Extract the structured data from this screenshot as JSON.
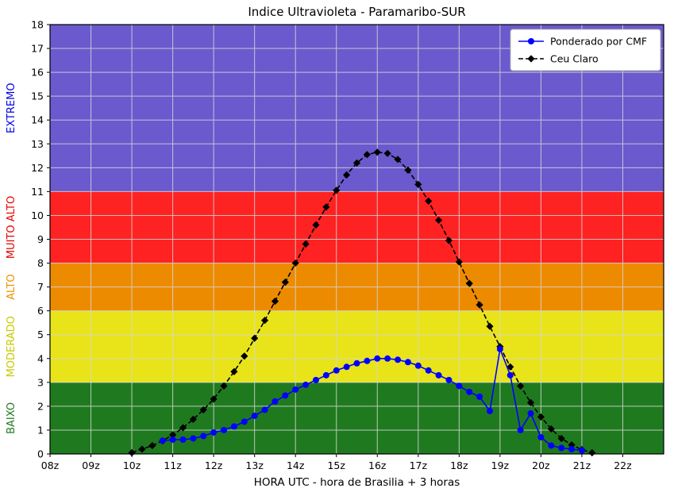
{
  "title": "Indice Ultravioleta - Paramaribo-SUR",
  "xlabel": "HORA UTC - hora de Brasilia + 3 horas",
  "chart_data": {
    "type": "line",
    "title": "Indice Ultravioleta - Paramaribo-SUR",
    "xlabel": "HORA UTC - hora de Brasilia + 3 horas",
    "ylabel": "",
    "xlim": [
      8,
      23
    ],
    "ylim": [
      0,
      18
    ],
    "grid": true,
    "legend_position": "top-right",
    "x_ticks": [
      8,
      9,
      10,
      11,
      12,
      13,
      14,
      15,
      16,
      17,
      18,
      19,
      20,
      21,
      22
    ],
    "x_tick_labels": [
      "08z",
      "09z",
      "10z",
      "11z",
      "12z",
      "13z",
      "14z",
      "15z",
      "16z",
      "17z",
      "18z",
      "19z",
      "20z",
      "21z",
      "22z"
    ],
    "y_ticks": [
      0,
      1,
      2,
      3,
      4,
      5,
      6,
      7,
      8,
      9,
      10,
      11,
      12,
      13,
      14,
      15,
      16,
      17,
      18
    ],
    "bands": [
      {
        "label": "BAIXO",
        "from": 0,
        "to": 3,
        "color": "#1f7a1f",
        "label_color": "#1f7a1f"
      },
      {
        "label": "MODERADO",
        "from": 3,
        "to": 6,
        "color": "#e8e419",
        "label_color": "#c9c900"
      },
      {
        "label": "ALTO",
        "from": 6,
        "to": 8,
        "color": "#ec8b00",
        "label_color": "#f09000"
      },
      {
        "label": "MUITO ALTO",
        "from": 8,
        "to": 11,
        "color": "#ff2222",
        "label_color": "#e80000"
      },
      {
        "label": "EXTREMO",
        "from": 11,
        "to": 18,
        "color": "#6a5acd",
        "label_color": "#0000e0"
      }
    ],
    "series": [
      {
        "name": "Ceu Claro",
        "color": "#000000",
        "line": "dashed",
        "marker": "diamond",
        "x": [
          10,
          10.25,
          10.5,
          10.75,
          11,
          11.25,
          11.5,
          11.75,
          12,
          12.25,
          12.5,
          12.75,
          13,
          13.25,
          13.5,
          13.75,
          14,
          14.25,
          14.5,
          14.75,
          15,
          15.25,
          15.5,
          15.75,
          16,
          16.25,
          16.5,
          16.75,
          17,
          17.25,
          17.5,
          17.75,
          18,
          18.25,
          18.5,
          18.75,
          19,
          19.25,
          19.5,
          19.75,
          20,
          20.25,
          20.5,
          20.75,
          21,
          21.25
        ],
        "values": [
          0.05,
          0.2,
          0.35,
          0.55,
          0.8,
          1.1,
          1.45,
          1.85,
          2.3,
          2.85,
          3.45,
          4.1,
          4.85,
          5.6,
          6.4,
          7.2,
          8.0,
          8.8,
          9.6,
          10.35,
          11.05,
          11.7,
          12.2,
          12.55,
          12.65,
          12.6,
          12.35,
          11.9,
          11.3,
          10.6,
          9.8,
          8.95,
          8.05,
          7.15,
          6.25,
          5.35,
          4.5,
          3.65,
          2.85,
          2.15,
          1.55,
          1.05,
          0.65,
          0.38,
          0.18,
          0.05
        ]
      },
      {
        "name": "Ponderado por CMF",
        "color": "#0000ff",
        "line": "solid",
        "marker": "circle",
        "x": [
          10.75,
          11,
          11.25,
          11.5,
          11.75,
          12,
          12.25,
          12.5,
          12.75,
          13,
          13.25,
          13.5,
          13.75,
          14,
          14.25,
          14.5,
          14.75,
          15,
          15.25,
          15.5,
          15.75,
          16,
          16.25,
          16.5,
          16.75,
          17,
          17.25,
          17.5,
          17.75,
          18,
          18.25,
          18.5,
          18.75,
          19,
          19.25,
          19.5,
          19.75,
          20,
          20.25,
          20.5,
          20.75,
          21
        ],
        "values": [
          0.55,
          0.6,
          0.6,
          0.65,
          0.75,
          0.9,
          1.0,
          1.15,
          1.35,
          1.6,
          1.85,
          2.2,
          2.45,
          2.7,
          2.9,
          3.1,
          3.3,
          3.5,
          3.65,
          3.8,
          3.9,
          4.0,
          4.0,
          3.95,
          3.85,
          3.7,
          3.5,
          3.3,
          3.1,
          2.85,
          2.6,
          2.4,
          1.8,
          4.4,
          3.3,
          1.0,
          1.7,
          0.7,
          0.35,
          0.25,
          0.2,
          0.15
        ]
      }
    ],
    "legend_order": [
      "Ponderado por CMF",
      "Ceu Claro"
    ]
  }
}
